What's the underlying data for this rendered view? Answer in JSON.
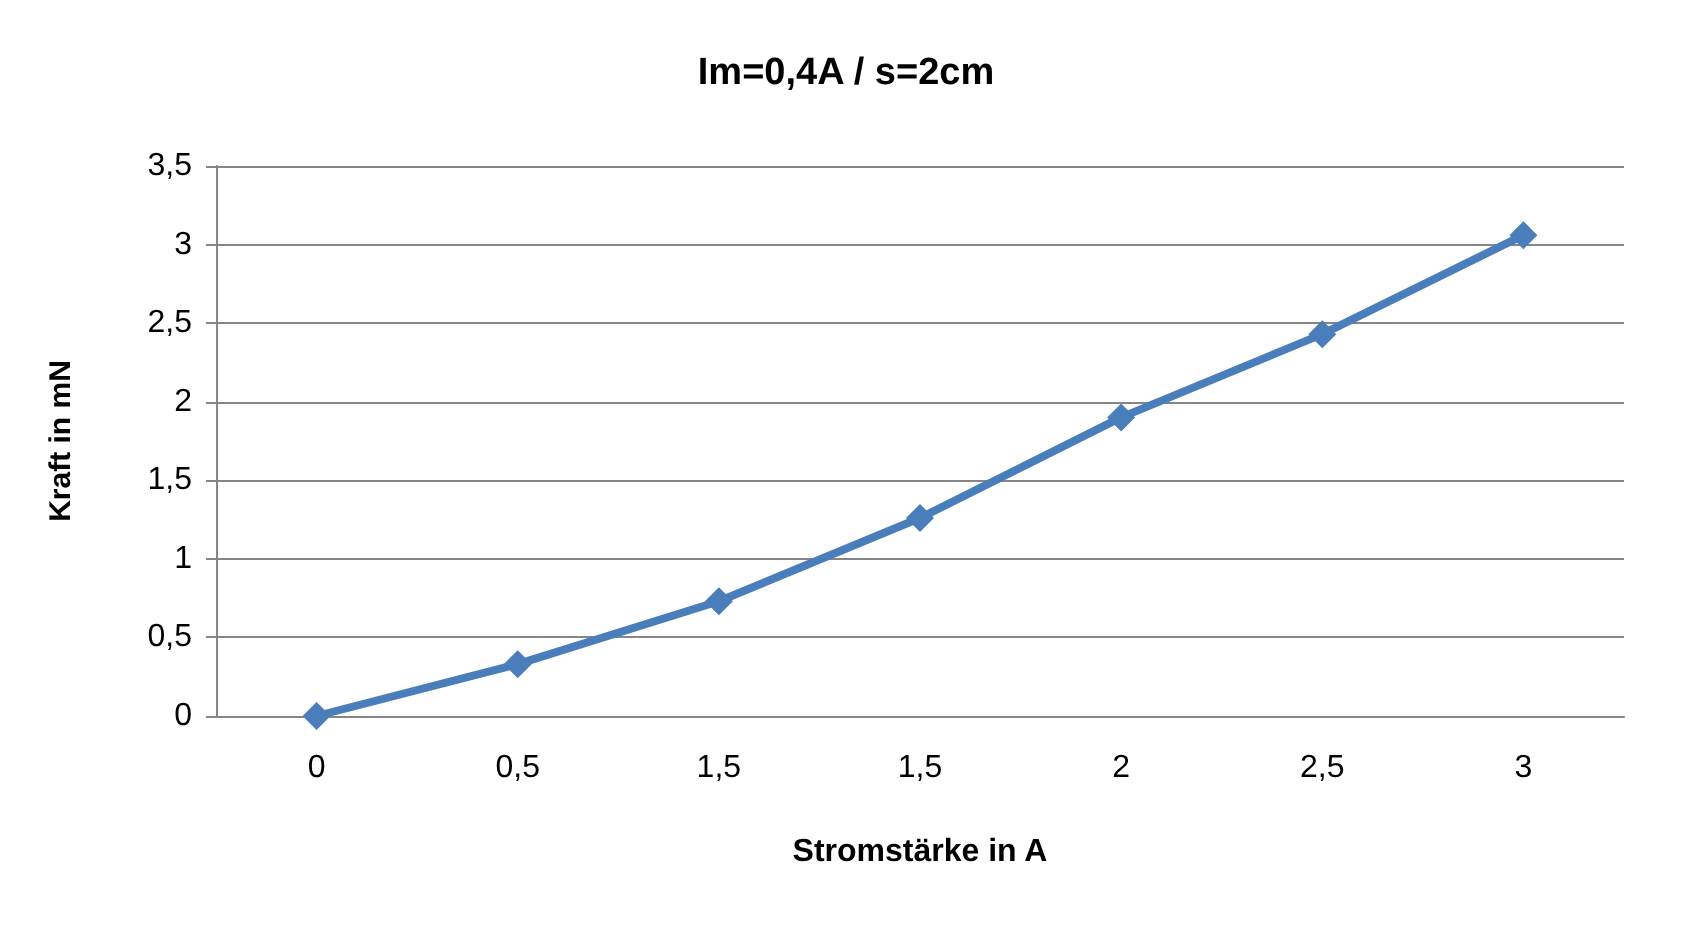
{
  "chart_data": {
    "type": "line",
    "title": "Im=0,4A / s=2cm",
    "xlabel": "Stromstärke in A",
    "ylabel": "Kraft in mN",
    "categories": [
      "0",
      "0,5",
      "1,5",
      "1,5",
      "2",
      "2,5",
      "3"
    ],
    "series": [
      {
        "color": "#4a7ebb",
        "values": [
          0,
          0.33,
          0.73,
          1.26,
          1.9,
          2.43,
          3.06
        ]
      }
    ],
    "ylim": [
      0,
      3.5
    ],
    "yticks": [
      0,
      {
        "value": 0.5,
        "label": "0,5"
      },
      1,
      {
        "value": 1.5,
        "label": "1,5"
      },
      2,
      {
        "value": 2.5,
        "label": "2,5"
      },
      3,
      {
        "value": 3.5,
        "label": "3,5"
      }
    ],
    "grid": "y",
    "marker": "diamond",
    "line_style": "solid"
  }
}
